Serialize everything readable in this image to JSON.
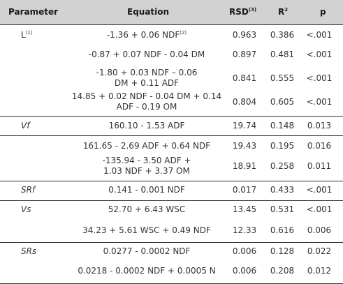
{
  "header": {
    "parameter": "Parameter",
    "equation": "Equation",
    "rsd": "RSD",
    "rsd_note": "(3)",
    "r2": "R",
    "r2_sup": "2",
    "p": "p"
  },
  "groups": [
    {
      "parameter": "L",
      "parameter_note": "(1)",
      "rows": [
        {
          "equation": "-1.36 + 0.06 NDF",
          "equation_note": "(2)",
          "rsd": "0.963",
          "r2": "0.386",
          "p": "<.001"
        },
        {
          "equation": "-0.87 + 0.07 NDF - 0.04 DM",
          "rsd": "0.897",
          "r2": "0.481",
          "p": "<.001"
        },
        {
          "equation": "-1.80 + 0.03 NDF – 0.06 DM + 0.11 ADF",
          "rsd": "0.841",
          "r2": "0.555",
          "p": "<.001"
        },
        {
          "equation": "14.85 + 0.02 NDF - 0.04 DM + 0.14 ADF - 0.19 OM",
          "rsd": "0.804",
          "r2": "0.605",
          "p": "<.001"
        }
      ]
    },
    {
      "parameter": "Vf",
      "rows": [
        {
          "equation": "160.10 - 1.53 ADF",
          "rsd": "19.74",
          "r2": "0.148",
          "p": "0.013"
        }
      ]
    },
    {
      "parameter": "",
      "rows": [
        {
          "equation": "161.65 - 2.69 ADF + 0.64 NDF",
          "rsd": "19.43",
          "r2": "0.195",
          "p": "0.016"
        },
        {
          "equation": "-135.94 - 3.50 ADF + 1.03 NDF + 3.37 OM",
          "rsd": "18.91",
          "r2": "0.258",
          "p": "0.011"
        }
      ]
    },
    {
      "parameter": "SRf",
      "rows": [
        {
          "equation": "0.141 - 0.001 NDF",
          "rsd": "0.017",
          "r2": "0.433",
          "p": "<.001"
        }
      ]
    },
    {
      "parameter": "Vs",
      "rows": [
        {
          "equation": "52.70 + 6.43 WSC",
          "rsd": "13.45",
          "r2": "0.531",
          "p": "<.001"
        },
        {
          "equation": "34.23 + 5.61 WSC + 0.49 NDF",
          "rsd": "12.33",
          "r2": "0.616",
          "p": "0.006"
        }
      ]
    },
    {
      "parameter": "SRs",
      "rows": [
        {
          "equation": "0.0277 - 0.0002 NDF",
          "rsd": "0.006",
          "r2": "0.128",
          "p": "0.022"
        },
        {
          "equation": "0.0218 - 0.0002 NDF + 0.0005 N",
          "rsd": "0.006",
          "r2": "0.208",
          "p": "0.012"
        }
      ]
    }
  ]
}
